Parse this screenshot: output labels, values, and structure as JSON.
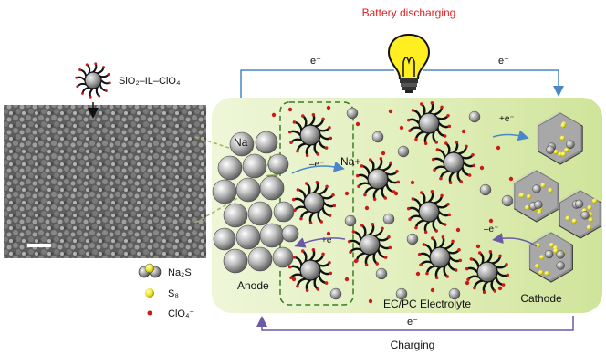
{
  "title": "Battery discharging",
  "bottom_label": "Charging",
  "electron_top_left": "e⁻",
  "electron_top_right": "e⁻",
  "electron_bottom": "e⁻",
  "particle_label": "SiO₂–IL–ClO₄",
  "anode_label": "Anode",
  "electrolyte_label": "EC/PC Electrolyte",
  "cathode_label": "Cathode",
  "na_label": "Na",
  "na_plus_label": "Na+",
  "minus_e_left": "–e⁻",
  "plus_e_left": "+e⁻",
  "plus_e_right": "+e⁻",
  "minus_e_right": "–e⁻",
  "legend": [
    {
      "icon": "na2s-cluster-icon",
      "label": "Na₂S"
    },
    {
      "icon": "s8-dot-icon",
      "label": "S₈"
    },
    {
      "icon": "clo4-dot-icon",
      "label": "ClO₄⁻"
    }
  ],
  "colors": {
    "title_red": "#e02020",
    "circuit_blue": "#4a86c8",
    "circuit_purple": "#6a5aa8",
    "electrolyte_green": "#d6eaa8",
    "particle_core": "#cfcfcf",
    "ligand_black": "#111111",
    "anion_red": "#cc1a1a",
    "sulfur_yellow": "#e8e020",
    "dashed_box": "#3d7a2a"
  }
}
